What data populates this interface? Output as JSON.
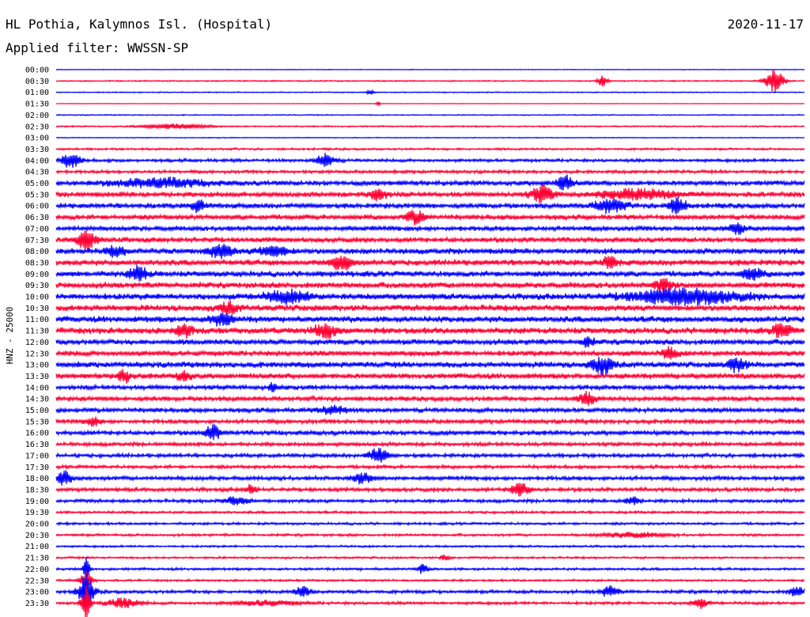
{
  "header": {
    "station": "HL Pothia, Kalymnos Isl. (Hospital)",
    "date": "2020-11-17",
    "filter": "Applied filter: WWSSN-SP"
  },
  "colors": {
    "blue": "#0000ff",
    "red": "#ff0033",
    "text": "#000000"
  },
  "chart_data": {
    "type": "line",
    "ylabel": "HNZ - 25000",
    "rows": [
      {
        "label": "00:00",
        "color": "blue",
        "noise": 0.3,
        "events": []
      },
      {
        "label": "00:30",
        "color": "red",
        "noise": 0.6,
        "events": [
          {
            "t": 0.73,
            "amp": 7,
            "w": 0.006
          },
          {
            "t": 0.96,
            "amp": 14,
            "w": 0.012
          }
        ]
      },
      {
        "label": "01:00",
        "color": "blue",
        "noise": 0.5,
        "events": [
          {
            "t": 0.42,
            "amp": 4,
            "w": 0.004
          }
        ]
      },
      {
        "label": "01:30",
        "color": "red",
        "noise": 0.2,
        "events": [
          {
            "t": 0.43,
            "amp": 3,
            "w": 0.003
          }
        ]
      },
      {
        "label": "02:00",
        "color": "blue",
        "noise": 0.5,
        "events": []
      },
      {
        "label": "02:30",
        "color": "red",
        "noise": 0.7,
        "events": [
          {
            "t": 0.16,
            "amp": 3,
            "w": 0.04
          }
        ]
      },
      {
        "label": "03:00",
        "color": "blue",
        "noise": 0.4,
        "events": []
      },
      {
        "label": "03:30",
        "color": "red",
        "noise": 1.0,
        "events": []
      },
      {
        "label": "04:00",
        "color": "blue",
        "noise": 1.5,
        "events": [
          {
            "t": 0.02,
            "amp": 9,
            "w": 0.012
          },
          {
            "t": 0.36,
            "amp": 8,
            "w": 0.012
          }
        ]
      },
      {
        "label": "04:30",
        "color": "red",
        "noise": 1.5,
        "events": []
      },
      {
        "label": "05:00",
        "color": "blue",
        "noise": 2.4,
        "events": [
          {
            "t": 0.14,
            "amp": 5,
            "w": 0.06
          },
          {
            "t": 0.68,
            "amp": 9,
            "w": 0.01
          }
        ]
      },
      {
        "label": "05:30",
        "color": "red",
        "noise": 2.4,
        "events": [
          {
            "t": 0.43,
            "amp": 8,
            "w": 0.01
          },
          {
            "t": 0.65,
            "amp": 10,
            "w": 0.015
          },
          {
            "t": 0.78,
            "amp": 6,
            "w": 0.05
          }
        ]
      },
      {
        "label": "06:00",
        "color": "blue",
        "noise": 2.4,
        "events": [
          {
            "t": 0.19,
            "amp": 7,
            "w": 0.01
          },
          {
            "t": 0.74,
            "amp": 8,
            "w": 0.02
          },
          {
            "t": 0.83,
            "amp": 9,
            "w": 0.012
          }
        ]
      },
      {
        "label": "06:30",
        "color": "red",
        "noise": 2.4,
        "events": [
          {
            "t": 0.48,
            "amp": 8,
            "w": 0.012
          }
        ]
      },
      {
        "label": "07:00",
        "color": "blue",
        "noise": 2.4,
        "events": [
          {
            "t": 0.91,
            "amp": 7,
            "w": 0.01
          }
        ]
      },
      {
        "label": "07:30",
        "color": "red",
        "noise": 2.4,
        "events": [
          {
            "t": 0.04,
            "amp": 12,
            "w": 0.012
          }
        ]
      },
      {
        "label": "08:00",
        "color": "blue",
        "noise": 2.8,
        "events": [
          {
            "t": 0.08,
            "amp": 6,
            "w": 0.012
          },
          {
            "t": 0.22,
            "amp": 8,
            "w": 0.015
          },
          {
            "t": 0.29,
            "amp": 6,
            "w": 0.02
          }
        ]
      },
      {
        "label": "08:30",
        "color": "red",
        "noise": 2.8,
        "events": [
          {
            "t": 0.38,
            "amp": 8,
            "w": 0.015
          },
          {
            "t": 0.74,
            "amp": 7,
            "w": 0.01
          }
        ]
      },
      {
        "label": "09:00",
        "color": "blue",
        "noise": 2.8,
        "events": [
          {
            "t": 0.11,
            "amp": 9,
            "w": 0.012
          },
          {
            "t": 0.93,
            "amp": 6,
            "w": 0.015
          }
        ]
      },
      {
        "label": "09:30",
        "color": "red",
        "noise": 2.8,
        "events": [
          {
            "t": 0.81,
            "amp": 7,
            "w": 0.012
          }
        ]
      },
      {
        "label": "10:00",
        "color": "blue",
        "noise": 3.0,
        "events": [
          {
            "t": 0.31,
            "amp": 7,
            "w": 0.03
          },
          {
            "t": 0.84,
            "amp": 9,
            "w": 0.07
          }
        ]
      },
      {
        "label": "10:30",
        "color": "red",
        "noise": 3.0,
        "events": [
          {
            "t": 0.23,
            "amp": 7,
            "w": 0.012
          }
        ]
      },
      {
        "label": "11:00",
        "color": "blue",
        "noise": 3.0,
        "events": [
          {
            "t": 0.22,
            "amp": 7,
            "w": 0.015
          }
        ]
      },
      {
        "label": "11:30",
        "color": "red",
        "noise": 3.0,
        "events": [
          {
            "t": 0.17,
            "amp": 7,
            "w": 0.012
          },
          {
            "t": 0.36,
            "amp": 9,
            "w": 0.015
          },
          {
            "t": 0.97,
            "amp": 8,
            "w": 0.012
          }
        ]
      },
      {
        "label": "12:00",
        "color": "blue",
        "noise": 2.6,
        "events": [
          {
            "t": 0.71,
            "amp": 6,
            "w": 0.008
          }
        ]
      },
      {
        "label": "12:30",
        "color": "red",
        "noise": 2.6,
        "events": [
          {
            "t": 0.82,
            "amp": 7,
            "w": 0.01
          }
        ]
      },
      {
        "label": "13:00",
        "color": "blue",
        "noise": 2.8,
        "events": [
          {
            "t": 0.73,
            "amp": 10,
            "w": 0.015
          },
          {
            "t": 0.91,
            "amp": 8,
            "w": 0.012
          }
        ]
      },
      {
        "label": "13:30",
        "color": "red",
        "noise": 2.6,
        "events": [
          {
            "t": 0.09,
            "amp": 8,
            "w": 0.008
          },
          {
            "t": 0.17,
            "amp": 6,
            "w": 0.01
          }
        ]
      },
      {
        "label": "14:00",
        "color": "blue",
        "noise": 2.2,
        "events": [
          {
            "t": 0.29,
            "amp": 6,
            "w": 0.005
          }
        ]
      },
      {
        "label": "14:30",
        "color": "red",
        "noise": 2.2,
        "events": [
          {
            "t": 0.71,
            "amp": 8,
            "w": 0.01
          }
        ]
      },
      {
        "label": "15:00",
        "color": "blue",
        "noise": 2.2,
        "events": [
          {
            "t": 0.37,
            "amp": 6,
            "w": 0.015
          }
        ]
      },
      {
        "label": "15:30",
        "color": "red",
        "noise": 2.0,
        "events": [
          {
            "t": 0.05,
            "amp": 5,
            "w": 0.01
          }
        ]
      },
      {
        "label": "16:00",
        "color": "blue",
        "noise": 2.2,
        "events": [
          {
            "t": 0.21,
            "amp": 9,
            "w": 0.01
          }
        ]
      },
      {
        "label": "16:30",
        "color": "red",
        "noise": 1.8,
        "events": []
      },
      {
        "label": "17:00",
        "color": "blue",
        "noise": 1.8,
        "events": [
          {
            "t": 0.43,
            "amp": 9,
            "w": 0.012
          }
        ]
      },
      {
        "label": "17:30",
        "color": "red",
        "noise": 1.6,
        "events": []
      },
      {
        "label": "18:00",
        "color": "blue",
        "noise": 2.0,
        "events": [
          {
            "t": 0.01,
            "amp": 8,
            "w": 0.01
          },
          {
            "t": 0.41,
            "amp": 6,
            "w": 0.012
          }
        ]
      },
      {
        "label": "18:30",
        "color": "red",
        "noise": 1.8,
        "events": [
          {
            "t": 0.26,
            "amp": 6,
            "w": 0.006
          },
          {
            "t": 0.62,
            "amp": 8,
            "w": 0.012
          }
        ]
      },
      {
        "label": "19:00",
        "color": "blue",
        "noise": 1.6,
        "events": [
          {
            "t": 0.24,
            "amp": 5,
            "w": 0.015
          },
          {
            "t": 0.77,
            "amp": 5,
            "w": 0.01
          }
        ]
      },
      {
        "label": "19:30",
        "color": "red",
        "noise": 1.2,
        "events": []
      },
      {
        "label": "20:00",
        "color": "blue",
        "noise": 1.2,
        "events": []
      },
      {
        "label": "20:30",
        "color": "red",
        "noise": 1.2,
        "events": [
          {
            "t": 0.77,
            "amp": 3,
            "w": 0.04
          }
        ]
      },
      {
        "label": "21:00",
        "color": "blue",
        "noise": 1.0,
        "events": []
      },
      {
        "label": "21:30",
        "color": "red",
        "noise": 1.0,
        "events": [
          {
            "t": 0.52,
            "amp": 4,
            "w": 0.006
          }
        ]
      },
      {
        "label": "22:00",
        "color": "blue",
        "noise": 1.2,
        "events": [
          {
            "t": 0.04,
            "amp": 16,
            "w": 0.004
          },
          {
            "t": 0.49,
            "amp": 6,
            "w": 0.006
          }
        ]
      },
      {
        "label": "22:30",
        "color": "red",
        "noise": 1.0,
        "events": [
          {
            "t": 0.04,
            "amp": 10,
            "w": 0.008
          }
        ]
      },
      {
        "label": "23:00",
        "color": "blue",
        "noise": 1.6,
        "events": [
          {
            "t": 0.04,
            "amp": 20,
            "w": 0.01
          },
          {
            "t": 0.33,
            "amp": 6,
            "w": 0.01
          },
          {
            "t": 0.74,
            "amp": 7,
            "w": 0.01
          },
          {
            "t": 0.99,
            "amp": 6,
            "w": 0.01
          }
        ]
      },
      {
        "label": "23:30",
        "color": "red",
        "noise": 1.4,
        "events": [
          {
            "t": 0.04,
            "amp": 22,
            "w": 0.006
          },
          {
            "t": 0.09,
            "amp": 6,
            "w": 0.02
          },
          {
            "t": 0.28,
            "amp": 3,
            "w": 0.04
          },
          {
            "t": 0.86,
            "amp": 6,
            "w": 0.01
          }
        ]
      }
    ]
  }
}
